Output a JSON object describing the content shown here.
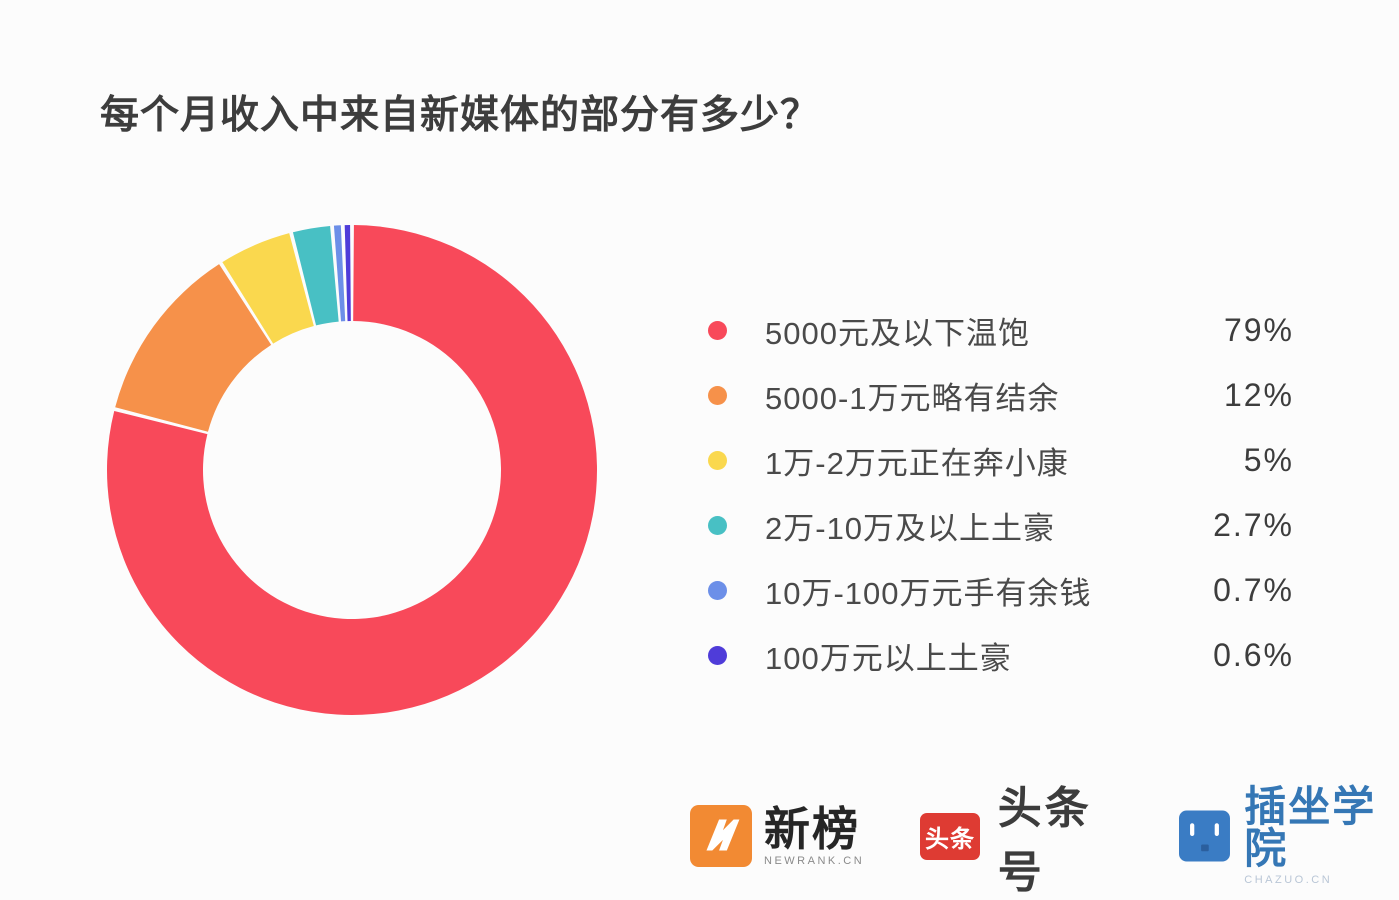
{
  "title": "每个月收入中来自新媒体的部分有多少？",
  "chart_data": {
    "type": "pie",
    "subtype": "donut",
    "title": "每个月收入中来自新媒体的部分有多少？",
    "legend_position": "right",
    "start_angle_deg": 0,
    "direction": "clockwise",
    "inner_radius_ratio": 0.61,
    "slices": [
      {
        "label": "5000元及以下温饱",
        "value": 79,
        "pct": "79%",
        "color": "#F8495A"
      },
      {
        "label": "5000-1万元略有结余",
        "value": 12,
        "pct": "12%",
        "color": "#F6914A"
      },
      {
        "label": "1万-2万元正在奔小康",
        "value": 5,
        "pct": "5%",
        "color": "#FAD84E"
      },
      {
        "label": "2万-10万及以上土豪",
        "value": 2.7,
        "pct": "2.7%",
        "color": "#48C0C4"
      },
      {
        "label": "10万-100万元手有余钱",
        "value": 0.7,
        "pct": "0.7%",
        "color": "#6C8FE8"
      },
      {
        "label": "100万元以上土豪",
        "value": 0.6,
        "pct": "0.6%",
        "color": "#4F3CD9"
      }
    ]
  },
  "footer": {
    "brands": [
      {
        "name": "newrank",
        "label": "新榜",
        "sub": "NEWRANK.CN",
        "color": "#F28A33"
      },
      {
        "name": "toutiao",
        "label": "头条号",
        "badge": "头条",
        "color": "#DE3B33"
      },
      {
        "name": "chazuo",
        "label": "插坐学院",
        "sub": "CHAZUO.CN",
        "color": "#3A7CC4"
      }
    ]
  }
}
